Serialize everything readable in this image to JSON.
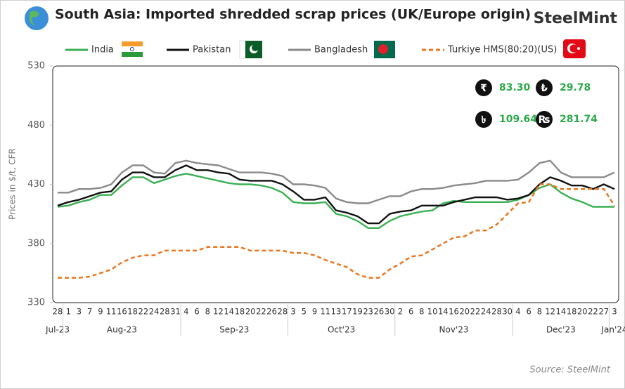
{
  "chart_data": {
    "type": "line",
    "title": "South Asia: Imported shredded scrap prices (UK/Europe origin)",
    "brand": "SteelMint",
    "y_label": "Prices in $/t, CFR",
    "source": "Source: SteelMint",
    "categories": [
      "28",
      "1",
      "3",
      "7",
      "9",
      "11",
      "16",
      "18",
      "22",
      "24",
      "28",
      "31",
      "4",
      "6",
      "8",
      "12",
      "14",
      "18",
      "20",
      "22",
      "26",
      "28",
      "3",
      "5",
      "9",
      "11",
      "13",
      "17",
      "19",
      "23",
      "26",
      "30",
      "2",
      "6",
      "8",
      "10",
      "14",
      "16",
      "20",
      "22",
      "24",
      "28",
      "30",
      "4",
      "6",
      "8",
      "12",
      "14",
      "18",
      "20",
      "22",
      "27",
      "3"
    ],
    "months": [
      {
        "label": "Jul-23",
        "from": 0,
        "to": 0
      },
      {
        "label": "Aug-23",
        "from": 1,
        "to": 11
      },
      {
        "label": "Sep-23",
        "from": 12,
        "to": 21
      },
      {
        "label": "Oct'23",
        "from": 22,
        "to": 31
      },
      {
        "label": "Nov'23",
        "from": 32,
        "to": 42
      },
      {
        "label": "Dec'23",
        "from": 43,
        "to": 51
      },
      {
        "label": "Jan'24",
        "from": 52,
        "to": 52
      }
    ],
    "ylim": [
      330,
      530
    ],
    "yticks": [
      330,
      380,
      430,
      480,
      530
    ],
    "grid": false,
    "series": [
      {
        "name": "India",
        "color": "#3cb054",
        "values": [
          411,
          412,
          415,
          417,
          421,
          421,
          429,
          436,
          436,
          431,
          434,
          437,
          439,
          437,
          435,
          433,
          431,
          430,
          430,
          429,
          427,
          423,
          415,
          414,
          414,
          415,
          405,
          403,
          399,
          393,
          393,
          399,
          403,
          405,
          407,
          408,
          414,
          416,
          415,
          415,
          415,
          415,
          415,
          417,
          421,
          427,
          430,
          423,
          418,
          415,
          411,
          411,
          411
        ]
      },
      {
        "name": "Pakistan",
        "color": "#111111",
        "values": [
          412,
          415,
          417,
          420,
          423,
          424,
          434,
          440,
          440,
          436,
          436,
          442,
          446,
          442,
          442,
          440,
          439,
          434,
          433,
          433,
          433,
          430,
          424,
          417,
          417,
          419,
          408,
          406,
          403,
          397,
          397,
          405,
          407,
          408,
          412,
          412,
          412,
          415,
          417,
          419,
          419,
          419,
          417,
          418,
          421,
          430,
          436,
          433,
          429,
          429,
          426,
          430,
          426
        ]
      },
      {
        "name": "Bangladesh",
        "color": "#8a8a8a",
        "values": [
          423,
          423,
          426,
          426,
          427,
          430,
          440,
          446,
          446,
          440,
          439,
          448,
          450,
          448,
          447,
          446,
          443,
          440,
          440,
          440,
          439,
          437,
          430,
          430,
          429,
          427,
          418,
          415,
          414,
          414,
          417,
          420,
          420,
          424,
          426,
          426,
          427,
          429,
          430,
          431,
          433,
          433,
          433,
          434,
          440,
          448,
          450,
          440,
          436,
          436,
          436,
          436,
          440
        ]
      },
      {
        "name": "Turkiye HMS(80:20)(US)",
        "color": "#e87722",
        "dashed": true,
        "values": [
          351,
          351,
          351,
          352,
          355,
          358,
          364,
          368,
          370,
          370,
          374,
          374,
          374,
          374,
          377,
          377,
          377,
          377,
          374,
          374,
          374,
          374,
          372,
          372,
          370,
          366,
          363,
          360,
          354,
          351,
          351,
          358,
          363,
          369,
          370,
          375,
          380,
          385,
          386,
          391,
          391,
          396,
          405,
          414,
          415,
          430,
          430,
          426,
          426,
          426,
          426,
          426,
          412
        ]
      }
    ],
    "currencies": [
      {
        "symbol": "₹",
        "rate": "83.30"
      },
      {
        "symbol": "₺",
        "rate": "29.78"
      },
      {
        "symbol": "৳",
        "rate": "109.64"
      },
      {
        "symbol": "₨",
        "rate": "281.74"
      }
    ]
  }
}
